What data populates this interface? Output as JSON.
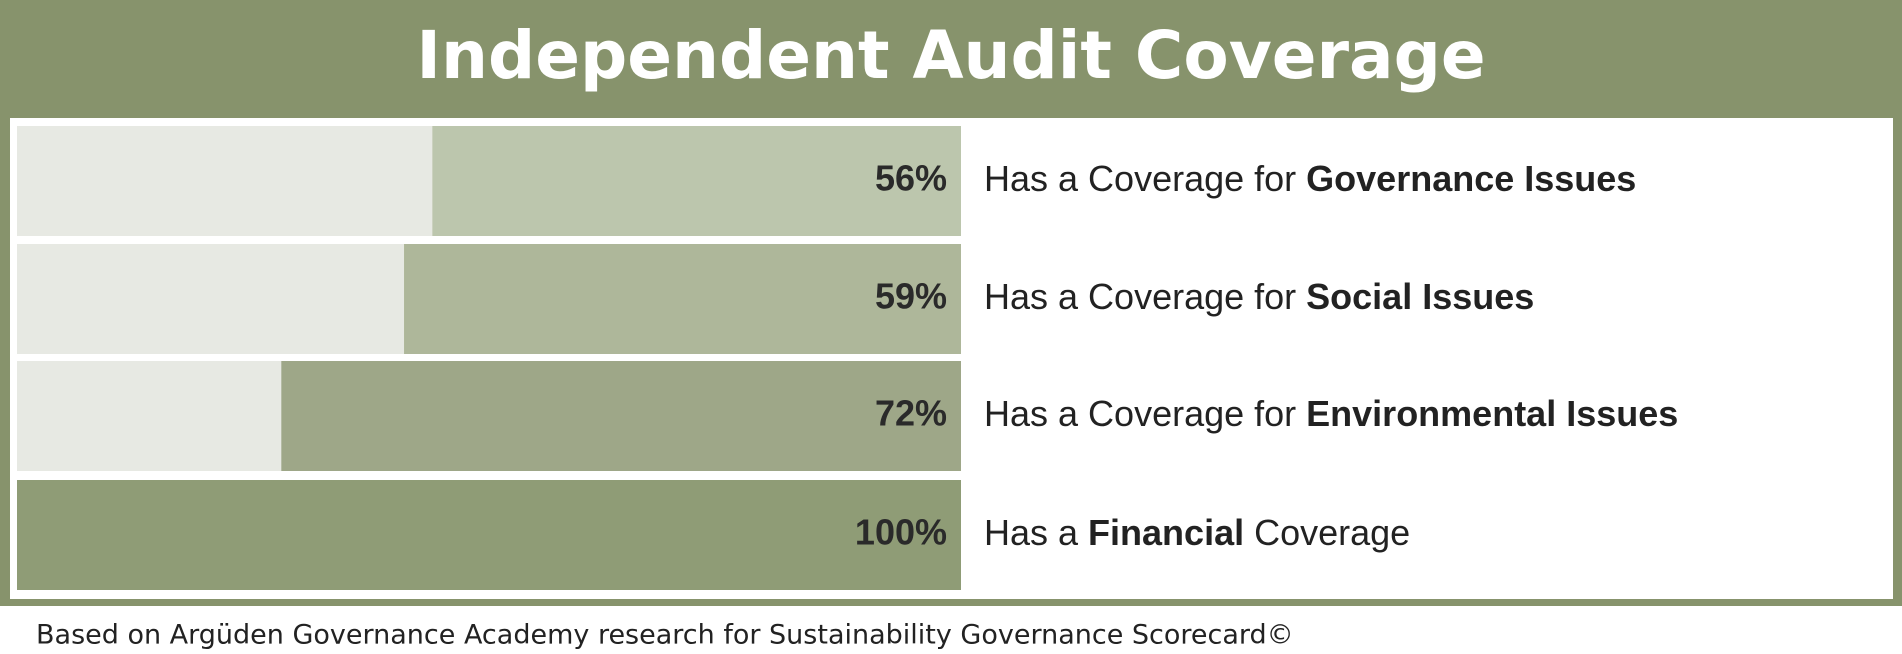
{
  "chart_data": {
    "type": "bar",
    "title": "Independent Audit Coverage",
    "source": "Based on Argüden Governance Academy research for Sustainability Governance Scorecard©",
    "categories": [
      [
        {
          "text": "Has a Coverage for ",
          "bold": false
        },
        {
          "text": "Governance Issues",
          "bold": true
        }
      ],
      [
        {
          "text": "Has a Coverage for ",
          "bold": false
        },
        {
          "text": "Social Issues",
          "bold": true
        }
      ],
      [
        {
          "text": "Has a Coverage for ",
          "bold": false
        },
        {
          "text": "Environmental Issues",
          "bold": true
        }
      ],
      [
        {
          "text": "Has a ",
          "bold": false
        },
        {
          "text": "Financial",
          "bold": true
        },
        {
          "text": " Coverage",
          "bold": false
        }
      ]
    ],
    "values": [
      56,
      59,
      72,
      100
    ],
    "value_labels": [
      "56%",
      "59%",
      "72%",
      "100%"
    ],
    "colors": [
      "#bcc6ad",
      "#aeb79a",
      "#9ea788",
      "#8f9c76"
    ],
    "track_color": "#e7e9e3",
    "frame_color": "#87936c",
    "xlim": [
      0,
      100
    ],
    "direction": "right-to-left"
  }
}
